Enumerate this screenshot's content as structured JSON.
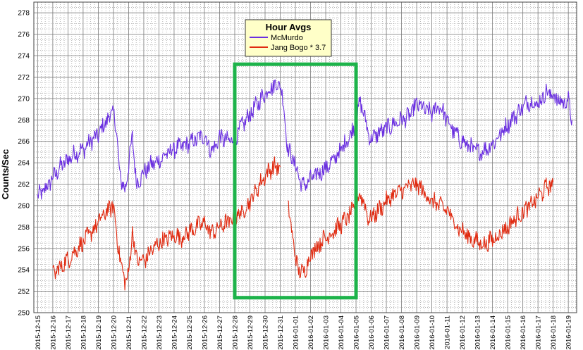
{
  "chart_data": {
    "type": "line",
    "title": "",
    "xlabel": "",
    "ylabel": "Counts/Sec",
    "ylim": [
      250,
      279
    ],
    "yticks": [
      250,
      252,
      254,
      256,
      258,
      260,
      262,
      264,
      266,
      268,
      270,
      272,
      274,
      276,
      278
    ],
    "x_tick_labels": [
      "2015-12-15",
      "2015-12-16",
      "2015-12-17",
      "2015-12-18",
      "2015-12-19",
      "2015-12-20",
      "2015-12-21",
      "2015-12-22",
      "2015-12-23",
      "2015-12-24",
      "2015-12-25",
      "2015-12-26",
      "2015-12-27",
      "2015-12-28",
      "2015-12-29",
      "2015-12-30",
      "2015-12-31",
      "2016-01-01",
      "2016-01-02",
      "2016-01-03",
      "2016-01-04",
      "2016-01-05",
      "2016-01-06",
      "2016-01-07",
      "2016-01-08",
      "2016-01-09",
      "2016-01-10",
      "2016-01-11",
      "2016-01-12",
      "2016-01-13",
      "2016-01-14",
      "2016-01-15",
      "2016-01-16",
      "2016-01-17",
      "2016-01-18",
      "2016-01-19"
    ],
    "grid": true,
    "legend": {
      "title": "Hour Avgs",
      "placement": "top-center"
    },
    "series": [
      {
        "name": "McMurdo",
        "color": "#6a2fe0",
        "points": [
          [
            "2015-12-15",
            260.8
          ],
          [
            "2015-12-15 12:00",
            261.5
          ],
          [
            "2015-12-16",
            262.6
          ],
          [
            "2015-12-16 12:00",
            263.6
          ],
          [
            "2015-12-17",
            264.3
          ],
          [
            "2015-12-17 12:00",
            264.9
          ],
          [
            "2015-12-18",
            265.2
          ],
          [
            "2015-12-18 12:00",
            266.0
          ],
          [
            "2015-12-19",
            266.6
          ],
          [
            "2015-12-19 12:00",
            267.8
          ],
          [
            "2015-12-20",
            268.9
          ],
          [
            "2015-12-20 06:00",
            266.0
          ],
          [
            "2015-12-20 12:00",
            262.0
          ],
          [
            "2015-12-20 18:00",
            261.6
          ],
          [
            "2015-12-21",
            263.5
          ],
          [
            "2015-12-21 06:00",
            266.7
          ],
          [
            "2015-12-21 12:00",
            262.0
          ],
          [
            "2015-12-22",
            263.1
          ],
          [
            "2015-12-22 12:00",
            263.8
          ],
          [
            "2015-12-23",
            264.2
          ],
          [
            "2015-12-23 12:00",
            264.8
          ],
          [
            "2015-12-24",
            265.3
          ],
          [
            "2015-12-24 12:00",
            265.5
          ],
          [
            "2015-12-25",
            265.8
          ],
          [
            "2015-12-25 12:00",
            266.2
          ],
          [
            "2015-12-26",
            266.6
          ],
          [
            "2015-12-26 12:00",
            265.0
          ],
          [
            "2015-12-27",
            266.4
          ],
          [
            "2015-12-27 12:00",
            266.0
          ],
          [
            "2015-12-28",
            266.3
          ],
          [
            "2015-12-28 12:00",
            267.5
          ],
          [
            "2015-12-29",
            268.5
          ],
          [
            "2015-12-29 12:00",
            269.5
          ],
          [
            "2015-12-30",
            270.5
          ],
          [
            "2015-12-30 12:00",
            271.2
          ],
          [
            "2015-12-31",
            271.4
          ],
          [
            "2015-12-31 06:00",
            269.0
          ],
          [
            "2015-12-31 12:00",
            265.2
          ],
          [
            "2015-12-31 18:00",
            264.6
          ],
          [
            "2016-01-01",
            263.8
          ],
          [
            "2016-01-01 06:00",
            262.6
          ],
          [
            "2016-01-01 12:00",
            261.8
          ],
          [
            "2016-01-02",
            262.4
          ],
          [
            "2016-01-02 12:00",
            263.0
          ],
          [
            "2016-01-03",
            263.5
          ],
          [
            "2016-01-03 12:00",
            264.2
          ],
          [
            "2016-01-04",
            265.2
          ],
          [
            "2016-01-04 12:00",
            266.3
          ],
          [
            "2016-01-05",
            267.6
          ],
          [
            "2016-01-05 06:00",
            269.6
          ],
          [
            "2016-01-05 12:00",
            268.8
          ],
          [
            "2016-01-05 18:00",
            267.0
          ],
          [
            "2016-01-06",
            266.2
          ],
          [
            "2016-01-06 12:00",
            266.8
          ],
          [
            "2016-01-07",
            267.2
          ],
          [
            "2016-01-07 12:00",
            267.6
          ],
          [
            "2016-01-08",
            268.0
          ],
          [
            "2016-01-08 12:00",
            268.3
          ],
          [
            "2016-01-09",
            269.5
          ],
          [
            "2016-01-09 12:00",
            269.0
          ],
          [
            "2016-01-10",
            268.6
          ],
          [
            "2016-01-10 12:00",
            269.4
          ],
          [
            "2016-01-11",
            268.0
          ],
          [
            "2016-01-11 12:00",
            266.8
          ],
          [
            "2016-01-12",
            266.0
          ],
          [
            "2016-01-12 12:00",
            265.5
          ],
          [
            "2016-01-13",
            265.0
          ],
          [
            "2016-01-13 12:00",
            265.2
          ],
          [
            "2016-01-14",
            265.8
          ],
          [
            "2016-01-14 12:00",
            266.6
          ],
          [
            "2016-01-15",
            267.6
          ],
          [
            "2016-01-15 12:00",
            268.4
          ],
          [
            "2016-01-16",
            269.2
          ],
          [
            "2016-01-16 12:00",
            269.8
          ],
          [
            "2016-01-17",
            269.4
          ],
          [
            "2016-01-17 12:00",
            270.6
          ],
          [
            "2016-01-18",
            270.3
          ],
          [
            "2016-01-18 12:00",
            269.6
          ],
          [
            "2016-01-19",
            269.8
          ],
          [
            "2016-01-19 06:00",
            268.0
          ]
        ]
      },
      {
        "name": "Jang Bogo * 3.7",
        "color": "#e02a10",
        "points": [
          [
            "2015-12-16",
            253.6
          ],
          [
            "2015-12-16 12:00",
            254.2
          ],
          [
            "2015-12-17",
            255.0
          ],
          [
            "2015-12-17 12:00",
            255.8
          ],
          [
            "2015-12-18",
            256.6
          ],
          [
            "2015-12-18 12:00",
            257.4
          ],
          [
            "2015-12-19",
            258.4
          ],
          [
            "2015-12-19 12:00",
            259.4
          ],
          [
            "2015-12-20",
            260.0
          ],
          [
            "2015-12-20 06:00",
            257.0
          ],
          [
            "2015-12-20 12:00",
            254.4
          ],
          [
            "2015-12-20 18:00",
            253.0
          ],
          [
            "2015-12-21",
            253.4
          ],
          [
            "2015-12-21 06:00",
            257.8
          ],
          [
            "2015-12-21 12:00",
            255.0
          ],
          [
            "2015-12-22",
            254.8
          ],
          [
            "2015-12-22 12:00",
            255.8
          ],
          [
            "2015-12-23",
            256.5
          ],
          [
            "2015-12-23 12:00",
            256.9
          ],
          [
            "2015-12-24",
            257.2
          ],
          [
            "2015-12-24 12:00",
            257.0
          ],
          [
            "2015-12-25",
            257.6
          ],
          [
            "2015-12-25 12:00",
            258.0
          ],
          [
            "2015-12-26",
            258.4
          ],
          [
            "2015-12-26 12:00",
            257.4
          ],
          [
            "2015-12-27",
            258.0
          ],
          [
            "2015-12-27 12:00",
            258.4
          ],
          [
            "2015-12-28",
            258.8
          ],
          [
            "2015-12-28 12:00",
            259.4
          ],
          [
            "2015-12-29",
            260.4
          ],
          [
            "2015-12-29 12:00",
            261.6
          ],
          [
            "2015-12-30",
            262.8
          ],
          [
            "2015-12-30 12:00",
            263.6
          ],
          [
            "2015-12-31",
            263.6
          ],
          [
            "2015-12-31 06:00",
            null
          ],
          [
            "2015-12-31 12:00",
            259.8
          ],
          [
            "2015-12-31 18:00",
            258.0
          ],
          [
            "2016-01-01",
            255.0
          ],
          [
            "2016-01-01 06:00",
            254.0
          ],
          [
            "2016-01-01 12:00",
            253.6
          ],
          [
            "2016-01-02",
            255.4
          ],
          [
            "2016-01-02 12:00",
            256.4
          ],
          [
            "2016-01-03",
            257.0
          ],
          [
            "2016-01-03 12:00",
            257.6
          ],
          [
            "2016-01-04",
            258.2
          ],
          [
            "2016-01-04 12:00",
            259.0
          ],
          [
            "2016-01-05",
            259.8
          ],
          [
            "2016-01-05 06:00",
            261.2
          ],
          [
            "2016-01-05 12:00",
            260.4
          ],
          [
            "2016-01-05 18:00",
            259.0
          ],
          [
            "2016-01-06",
            258.8
          ],
          [
            "2016-01-06 12:00",
            259.6
          ],
          [
            "2016-01-07",
            260.4
          ],
          [
            "2016-01-07 12:00",
            261.0
          ],
          [
            "2016-01-08",
            261.4
          ],
          [
            "2016-01-08 12:00",
            261.8
          ],
          [
            "2016-01-09",
            262.0
          ],
          [
            "2016-01-09 12:00",
            261.2
          ],
          [
            "2016-01-10",
            260.4
          ],
          [
            "2016-01-10 12:00",
            260.0
          ],
          [
            "2016-01-11",
            259.6
          ],
          [
            "2016-01-11 12:00",
            258.4
          ],
          [
            "2016-01-12",
            257.6
          ],
          [
            "2016-01-12 12:00",
            257.0
          ],
          [
            "2016-01-13",
            256.6
          ],
          [
            "2016-01-13 12:00",
            256.4
          ],
          [
            "2016-01-14",
            256.8
          ],
          [
            "2016-01-14 12:00",
            257.4
          ],
          [
            "2016-01-15",
            258.0
          ],
          [
            "2016-01-15 12:00",
            258.8
          ],
          [
            "2016-01-16",
            259.4
          ],
          [
            "2016-01-16 12:00",
            260.0
          ],
          [
            "2016-01-17",
            260.8
          ],
          [
            "2016-01-17 12:00",
            261.6
          ],
          [
            "2016-01-18",
            262.2
          ]
        ]
      }
    ],
    "annotations": [
      {
        "type": "rectangle",
        "color": "#1db34a",
        "x_start": "2015-12-28",
        "x_end": "2016-01-05",
        "y_range": [
          251.4,
          273.2
        ]
      }
    ]
  }
}
